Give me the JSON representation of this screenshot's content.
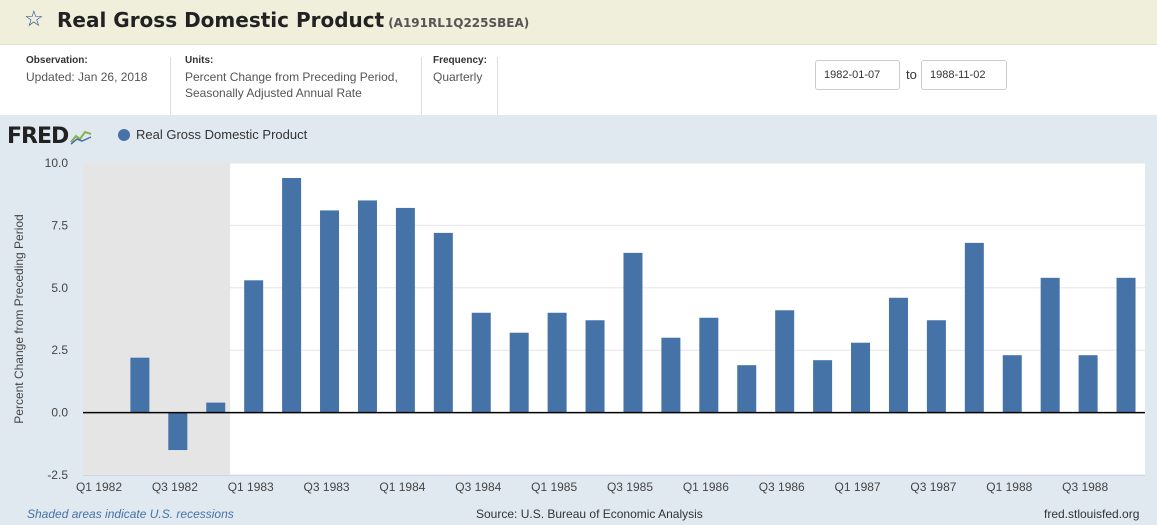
{
  "header": {
    "title": "Real Gross Domestic Product",
    "series_id": "(A191RL1Q225SBEA)"
  },
  "meta": {
    "observation_label": "Observation:",
    "observation_value": "Updated: Jan 26, 2018",
    "units_label": "Units:",
    "units_line1": "Percent Change from Preceding Period,",
    "units_line2": "Seasonally Adjusted Annual Rate",
    "frequency_label": "Frequency:",
    "frequency_value": "Quarterly"
  },
  "date_range": {
    "start": "1982-01-07",
    "to_label": "to",
    "end": "1988-11-02"
  },
  "graph": {
    "logo": "FRED",
    "legend_label": "Real Gross Domestic Product",
    "series_color": "#4572a7",
    "recession_color": "#e5e5e5",
    "footnote_recession": "Shaded areas indicate U.S. recessions",
    "footnote_source": "Source: U.S. Bureau of Economic Analysis",
    "footnote_site": "fred.stlouisfed.org"
  },
  "chart_data": {
    "type": "bar",
    "categories": [
      "Q1 1982",
      "Q2 1982",
      "Q3 1982",
      "Q4 1982",
      "Q1 1983",
      "Q2 1983",
      "Q3 1983",
      "Q4 1983",
      "Q1 1984",
      "Q2 1984",
      "Q3 1984",
      "Q4 1984",
      "Q1 1985",
      "Q2 1985",
      "Q3 1985",
      "Q4 1985",
      "Q1 1986",
      "Q2 1986",
      "Q3 1986",
      "Q4 1986",
      "Q1 1987",
      "Q2 1987",
      "Q3 1987",
      "Q4 1987",
      "Q1 1988",
      "Q2 1988",
      "Q3 1988",
      "Q4 1988"
    ],
    "values": [
      null,
      2.2,
      -1.5,
      0.4,
      5.3,
      9.4,
      8.1,
      8.5,
      8.2,
      7.2,
      4.0,
      3.2,
      4.0,
      3.7,
      6.4,
      3.0,
      3.8,
      1.9,
      4.1,
      2.1,
      2.8,
      4.6,
      3.7,
      6.8,
      2.3,
      5.4,
      2.3,
      5.4
    ],
    "x_tick_labels": [
      "Q1 1982",
      "Q3 1982",
      "Q1 1983",
      "Q3 1983",
      "Q1 1984",
      "Q3 1984",
      "Q1 1985",
      "Q3 1985",
      "Q1 1986",
      "Q3 1986",
      "Q1 1987",
      "Q3 1987",
      "Q1 1988",
      "Q3 1988"
    ],
    "y_ticks": [
      "10.0",
      "7.5",
      "5.0",
      "2.5",
      "0.0",
      "-2.5"
    ],
    "ylim": [
      -2.5,
      10
    ],
    "ylabel": "Percent Change from Preceding Period",
    "xlabel": "",
    "recession": {
      "from": "Q1 1982",
      "to": "Q4 1982"
    },
    "grid": true
  }
}
